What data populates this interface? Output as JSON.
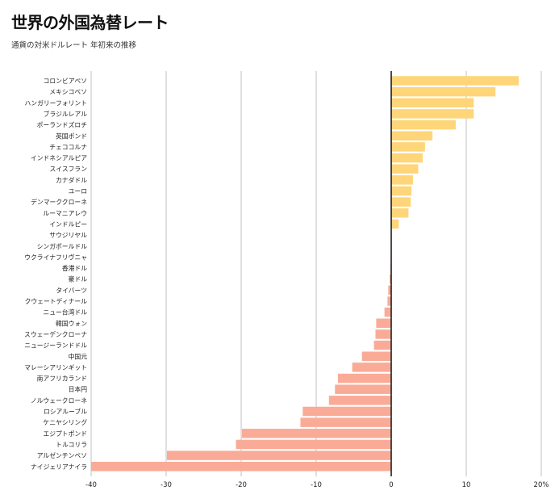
{
  "header": {
    "title": "世界の外国為替レート",
    "subtitle": "通貨の対米ドルレート 年初来の推移"
  },
  "colors": {
    "positive": "#FFD579",
    "negative": "#FAAB97",
    "zero_line": "#111111",
    "grid": "#cccccc"
  },
  "chart_data": {
    "type": "bar",
    "orientation": "horizontal",
    "title": "世界の外国為替レート",
    "subtitle": "通貨の対米ドルレート 年初来の推移",
    "xlim": [
      -40,
      20
    ],
    "x_ticks": [
      -40,
      -30,
      -20,
      -10,
      0,
      10,
      20
    ],
    "x_tick_labels": [
      "-40",
      "-30",
      "-20",
      "-10",
      "0",
      "10",
      "20%"
    ],
    "grid": true,
    "categories": [
      "コロンビアペソ",
      "メキシコペソ",
      "ハンガリーフォリント",
      "ブラジルレアル",
      "ポーランドズロチ",
      "英国ポンド",
      "チェココルナ",
      "インドネシアルピア",
      "スイスフラン",
      "カナダドル",
      "ユーロ",
      "デンマーククローネ",
      "ルーマニアレウ",
      "インドルピー",
      "サウジリヤル",
      "シンガポールドル",
      "ウクライナフリヴニャ",
      "香港ドル",
      "豪ドル",
      "タイバーツ",
      "クウェートディナール",
      "ニュー台湾ドル",
      "韓国ウォン",
      "スウェーデンクローナ",
      "ニュージーランドドル",
      "中国元",
      "マレーシアリンギット",
      "南アフリカランド",
      "日本円",
      "ノルウェークローネ",
      "ロシアルーブル",
      "ケニヤシリング",
      "エジプトポンド",
      "トルコリラ",
      "アルゼンチンペソ",
      "ナイジェリアナイラ"
    ],
    "values": [
      17.0,
      13.9,
      11.0,
      11.0,
      8.6,
      5.5,
      4.5,
      4.2,
      3.6,
      2.9,
      2.7,
      2.6,
      2.3,
      1.0,
      0.0,
      0.0,
      0.0,
      -0.1,
      -0.2,
      -0.4,
      -0.5,
      -0.9,
      -2.0,
      -2.1,
      -2.3,
      -3.9,
      -5.2,
      -7.1,
      -7.5,
      -8.3,
      -11.8,
      -12.1,
      -19.9,
      -20.7,
      -29.9,
      -40.0
    ]
  }
}
